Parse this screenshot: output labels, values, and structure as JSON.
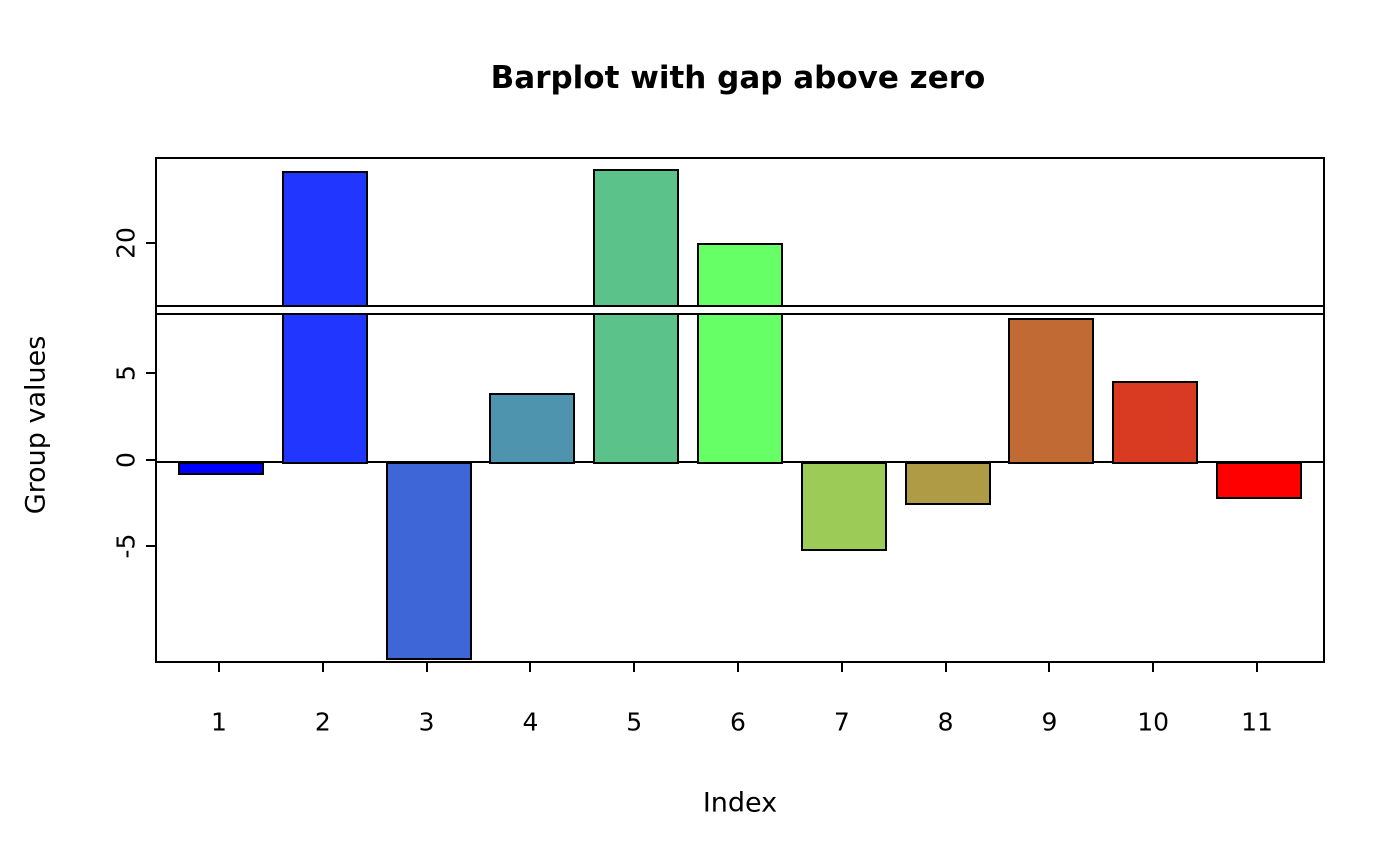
{
  "chart_data": {
    "type": "bar",
    "title": "Barplot with gap above zero",
    "xlabel": "Index",
    "ylabel": "Group values",
    "categories": [
      "1",
      "2",
      "3",
      "4",
      "5",
      "6",
      "7",
      "8",
      "9",
      "10",
      "11"
    ],
    "values": [
      -0.8,
      24.3,
      -11.5,
      4.0,
      24.4,
      20.1,
      -5.2,
      -2.5,
      8.3,
      4.7,
      -2.2
    ],
    "bar_colors": [
      "#0000ff",
      "#2136ff",
      "#3e66d6",
      "#4e94ae",
      "#5bc389",
      "#66ff66",
      "#9dcb57",
      "#af9a46",
      "#c26a33",
      "#d93a22",
      "#ff0000"
    ],
    "bar_border_color": "#000000",
    "background_color": "#ffffff",
    "axis_color": "#000000",
    "y_axis": {
      "gap": [
        8.5,
        16.4
      ],
      "lower_ticks": [
        -5,
        0,
        5
      ],
      "upper_ticks": [
        20
      ],
      "lower_range": [
        -11.8,
        8.5
      ],
      "upper_range": [
        16.4,
        25.0
      ]
    },
    "grid": false,
    "legend": false
  }
}
